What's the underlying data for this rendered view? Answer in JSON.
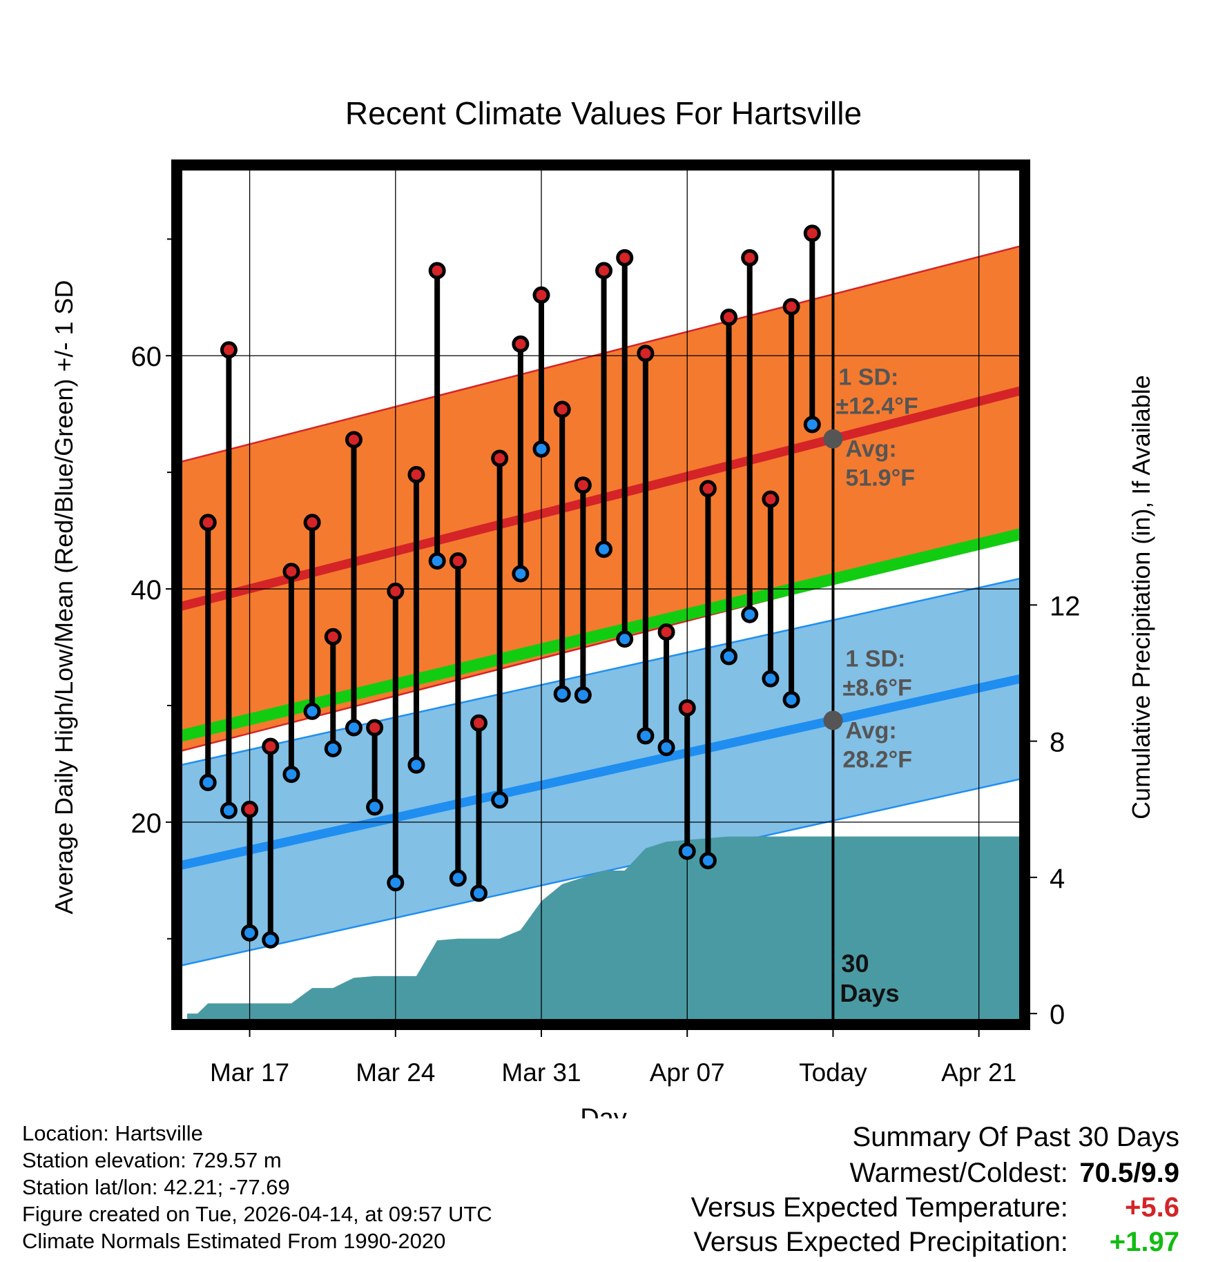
{
  "chart_data": {
    "type": "range-bar-with-bands",
    "title": "Recent Climate Values For Hartsville",
    "xlabel": "Day",
    "ylabel_left": "Average Daily High/Low/Mean (Red/Blue/Green) +/- 1 SD",
    "ylabel_right": "Cumulative Precipitation (in), If Available",
    "x_tick_labels": [
      "Mar 17",
      "Mar 24",
      "Mar 31",
      "Apr 07",
      "Today",
      "Apr 21"
    ],
    "x_ticks": [
      3,
      10,
      17,
      24,
      31,
      38
    ],
    "xlim": [
      -0.3,
      40
    ],
    "ylim_left": [
      3,
      76
    ],
    "y_ticks_left": [
      20,
      40,
      60
    ],
    "y_minor_left": [
      10,
      30,
      50,
      70
    ],
    "ylim_right": [
      -0.2,
      24.8
    ],
    "y_ticks_right": [
      0,
      4,
      8,
      12
    ],
    "today_day": 31,
    "today_label": "30",
    "today_sublabel": "Days",
    "high_band": {
      "mean_start": 38.5,
      "mean_end": 57,
      "sd": 12.4,
      "color": "#f47a2f",
      "line_color": "#d42427"
    },
    "low_band": {
      "mean_start": 16.3,
      "mean_end": 32.3,
      "sd": 8.6,
      "color": "#82c0e6",
      "line_color": "#1f8ef0"
    },
    "mean_line": {
      "start": 27.4,
      "end": 44.7,
      "color": "#12cc12"
    },
    "annotations": {
      "high_sd": "1 SD:",
      "high_sd_value": "±12.4°F",
      "high_avg": "Avg:",
      "high_avg_value": "51.9°F",
      "low_sd": "1 SD:",
      "low_sd_value": "±8.6°F",
      "low_avg": "Avg:",
      "low_avg_value": "28.2°F"
    },
    "days": [
      1,
      2,
      3,
      4,
      5,
      6,
      7,
      8,
      9,
      10,
      11,
      12,
      13,
      14,
      15,
      16,
      17,
      18,
      19,
      20,
      21,
      22,
      23,
      24,
      25,
      26,
      27,
      28,
      29,
      30
    ],
    "highs": [
      45.7,
      60.5,
      21.1,
      26.5,
      41.5,
      45.7,
      35.9,
      52.8,
      28.1,
      39.8,
      49.8,
      67.3,
      42.4,
      28.5,
      51.2,
      61.0,
      65.2,
      55.4,
      48.9,
      67.3,
      68.4,
      60.2,
      36.3,
      29.8,
      48.6,
      63.3,
      68.4,
      47.7,
      64.2,
      70.5
    ],
    "lows": [
      23.4,
      21.0,
      10.5,
      9.9,
      24.1,
      29.5,
      26.3,
      28.1,
      21.3,
      14.8,
      24.9,
      42.4,
      15.2,
      13.9,
      21.9,
      41.3,
      52.0,
      31.0,
      30.9,
      43.4,
      35.7,
      27.4,
      26.4,
      17.5,
      16.7,
      34.2,
      37.8,
      32.3,
      30.5,
      54.1
    ],
    "precip_x": [
      0,
      0.5,
      1,
      3,
      5,
      6,
      7,
      8,
      9,
      10,
      11,
      12,
      13,
      14,
      15,
      16,
      17,
      18,
      19,
      20,
      21,
      22,
      23,
      24,
      25,
      26,
      27,
      28,
      29,
      30,
      31,
      40
    ],
    "precip_cum": [
      0,
      0,
      0.3,
      0.3,
      0.3,
      0.75,
      0.75,
      1.05,
      1.1,
      1.1,
      1.1,
      2.15,
      2.2,
      2.2,
      2.2,
      2.45,
      3.3,
      3.8,
      4.0,
      4.2,
      4.2,
      4.85,
      5.05,
      5.1,
      5.15,
      5.2,
      5.2,
      5.2,
      5.2,
      5.2,
      5.2,
      5.2
    ],
    "precip_color": "#4a9aa4",
    "high_dot_color": "#d42427",
    "low_dot_color": "#1f8ef0"
  },
  "info": {
    "location": "Location: Hartsville",
    "elevation": "Station elevation: 729.57 m",
    "latlon": "Station lat/lon: 42.21; -77.69",
    "created": "Figure created on Tue, 2026-04-14, at 09:57 UTC",
    "normals": "Climate Normals Estimated From 1990-2020"
  },
  "summary": {
    "title": "Summary Of Past 30 Days",
    "warm_cold_label": "Warmest/Coldest:",
    "warm_cold_value": "70.5/9.9",
    "temp_label": "Versus Expected Temperature:",
    "temp_value": "+5.6",
    "temp_color": "#d42427",
    "precip_label": "Versus Expected Precipitation:",
    "precip_value": "+1.97",
    "precip_color": "#12bb12"
  }
}
